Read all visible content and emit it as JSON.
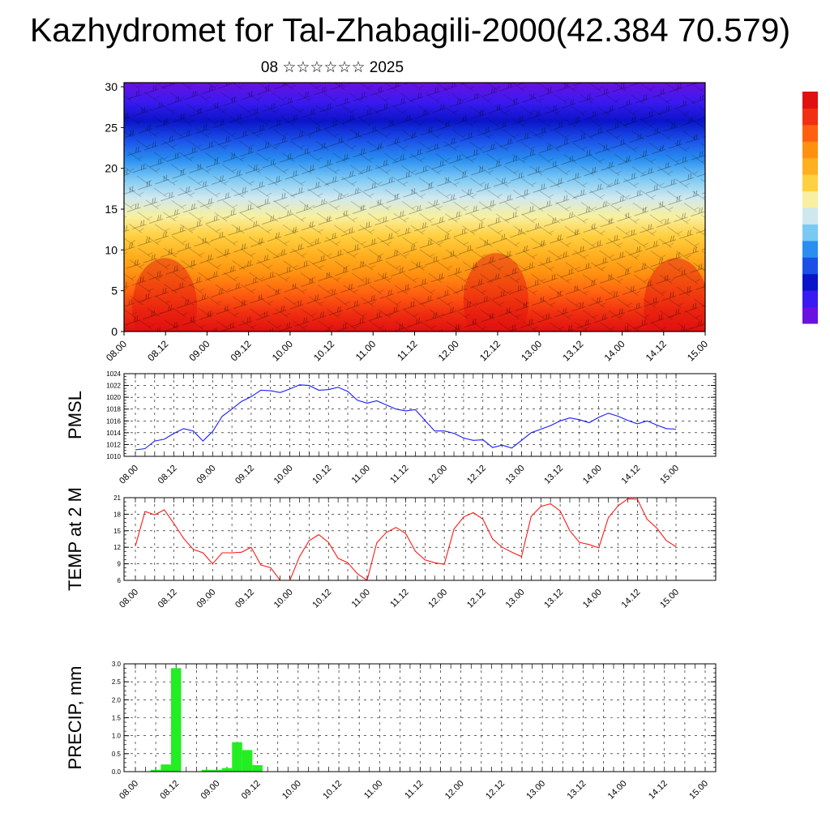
{
  "title": "Kazhydromet for Tal-Zhabagili-2000(42.384 70.579)",
  "subtitle": "08 ☆☆☆☆☆☆ 2025",
  "time_ticks": [
    "08.00",
    "08.12",
    "09.00",
    "09.12",
    "10.00",
    "10.12",
    "11.00",
    "11.12",
    "12.00",
    "12.12",
    "13.00",
    "13.12",
    "14.00",
    "14.12",
    "15.00"
  ],
  "colors": {
    "pmsl_line": "#1a1aff",
    "temp_line": "#ff1a1a",
    "precip_bar": "#22ee22",
    "grid": "#000000"
  },
  "chart_data": [
    {
      "type": "heatmap",
      "name": "cross-section",
      "y_ticks": [
        "0",
        "5",
        "10",
        "15",
        "20",
        "25",
        "30"
      ],
      "ylim": [
        0,
        30.5
      ],
      "x_range": [
        "08.00",
        "15.00"
      ],
      "colormap": [
        "#6a10e0",
        "#3a1af0",
        "#0a14c8",
        "#1a50e8",
        "#2a8ef0",
        "#7ac8f4",
        "#cfe8f0",
        "#f8f0a0",
        "#ffd040",
        "#ffb020",
        "#ff9010",
        "#ff6010",
        "#f03010",
        "#e01010"
      ],
      "colorbar_visible": true,
      "overlay": "wind barbs"
    },
    {
      "type": "line",
      "ylabel": "PMSL",
      "ylim": [
        1010,
        1024
      ],
      "y_ticks": [
        "1010",
        "1012",
        "1014",
        "1016",
        "1018",
        "1020",
        "1022",
        "1024"
      ],
      "series": [
        {
          "values": [
            1011.1,
            1011.3,
            1012.6,
            1012.9,
            1013.9,
            1014.7,
            1014.3,
            1012.6,
            1014.2,
            1016.8,
            1018.0,
            1019.3,
            1020.1,
            1021.2,
            1021.1,
            1020.8,
            1021.4,
            1022.1,
            1022.0,
            1021.2,
            1021.3,
            1021.7,
            1021.0,
            1019.5,
            1019.0,
            1019.4,
            1018.7,
            1018.0,
            1017.7,
            1017.9,
            1016.1,
            1014.3,
            1014.3,
            1013.9,
            1013.1,
            1012.7,
            1012.8,
            1011.5,
            1011.9,
            1011.4,
            1012.7,
            1014.0,
            1014.6,
            1015.2,
            1016.0,
            1016.5,
            1016.2,
            1015.7,
            1016.6,
            1017.3,
            1016.8,
            1016.1,
            1015.5,
            1016.0,
            1015.3,
            1014.7,
            1014.6
          ]
        }
      ]
    },
    {
      "type": "line",
      "ylabel": "TEMP at 2 M",
      "ylim": [
        6,
        21
      ],
      "y_ticks": [
        "6",
        "9",
        "12",
        "15",
        "18",
        "21"
      ],
      "series": [
        {
          "values": [
            12.2,
            18.5,
            17.9,
            18.8,
            16.3,
            13.6,
            11.6,
            11.0,
            9.0,
            11.0,
            11.0,
            11.1,
            12.0,
            8.8,
            8.3,
            6.0,
            6.0,
            10.3,
            13.2,
            14.3,
            12.9,
            10.0,
            9.2,
            7.2,
            6.0,
            12.8,
            14.7,
            15.6,
            14.5,
            11.3,
            9.7,
            9.2,
            8.9,
            15.3,
            17.5,
            18.3,
            17.1,
            13.5,
            12.0,
            11.1,
            10.3,
            17.6,
            19.4,
            19.9,
            18.6,
            15.0,
            12.9,
            12.5,
            11.9,
            17.4,
            19.5,
            20.8,
            20.7,
            17.1,
            15.5,
            13.2,
            12.1
          ]
        }
      ]
    },
    {
      "type": "bar",
      "ylabel": "PRECIP, mm",
      "ylim": [
        0,
        3.0
      ],
      "y_ticks": [
        "0.0",
        "0.5",
        "1.0",
        "1.5",
        "2.0",
        "2.5",
        "3.0"
      ],
      "series": [
        {
          "values": [
            0,
            0,
            0.05,
            0.2,
            2.88,
            0,
            0,
            0.05,
            0.05,
            0.1,
            0.82,
            0.6,
            0.18,
            0,
            0,
            0,
            0,
            0,
            0,
            0,
            0,
            0,
            0,
            0,
            0,
            0,
            0,
            0,
            0,
            0,
            0,
            0,
            0,
            0,
            0,
            0,
            0,
            0,
            0,
            0,
            0,
            0,
            0,
            0,
            0,
            0,
            0,
            0,
            0,
            0,
            0,
            0,
            0,
            0,
            0,
            0,
            0
          ]
        }
      ]
    }
  ]
}
